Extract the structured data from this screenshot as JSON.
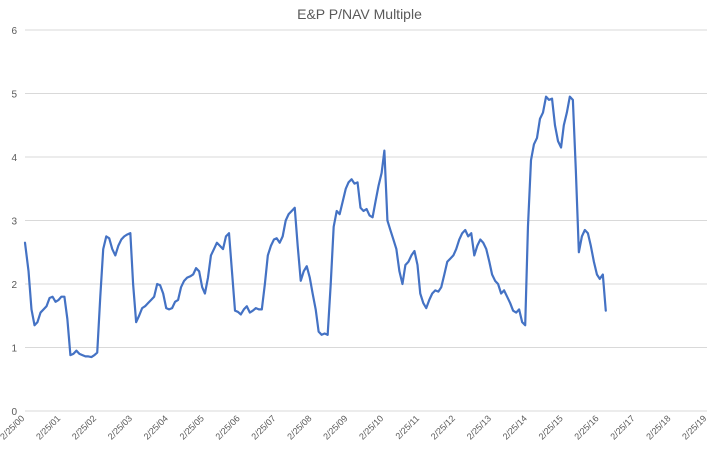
{
  "chart_data": {
    "type": "line",
    "title": "E&P P/NAV Multiple",
    "xlabel": "",
    "ylabel": "",
    "ylim": [
      0,
      6
    ],
    "yticks": [
      "0",
      "1",
      "2",
      "3",
      "4",
      "5",
      "6"
    ],
    "grid": true,
    "legend": "none",
    "line_color": "#4472C4",
    "grid_color": "#D9D9D9",
    "axis_label_color": "#595959",
    "xticks": [
      "2/25/00",
      "2/25/01",
      "2/25/02",
      "2/25/03",
      "2/25/04",
      "2/25/05",
      "2/25/06",
      "2/25/07",
      "2/25/08",
      "2/25/09",
      "2/25/10",
      "2/25/11",
      "2/25/12",
      "2/25/13",
      "2/25/14",
      "2/25/15",
      "2/25/16",
      "2/25/17",
      "2/25/18",
      "2/25/19"
    ],
    "series": [
      {
        "points": [
          [
            "2/25/00",
            2.65
          ],
          [
            "4/1/00",
            2.2
          ],
          [
            "5/1/00",
            1.6
          ],
          [
            "6/1/00",
            1.35
          ],
          [
            "7/1/00",
            1.4
          ],
          [
            "8/1/00",
            1.55
          ],
          [
            "9/1/00",
            1.6
          ],
          [
            "10/1/00",
            1.65
          ],
          [
            "11/1/00",
            1.78
          ],
          [
            "12/1/00",
            1.8
          ],
          [
            "1/1/01",
            1.72
          ],
          [
            "2/1/01",
            1.75
          ],
          [
            "3/1/01",
            1.8
          ],
          [
            "4/1/01",
            1.8
          ],
          [
            "5/1/01",
            1.45
          ],
          [
            "6/1/01",
            0.88
          ],
          [
            "7/1/01",
            0.9
          ],
          [
            "8/1/01",
            0.95
          ],
          [
            "9/1/01",
            0.9
          ],
          [
            "10/1/01",
            0.88
          ],
          [
            "11/1/01",
            0.86
          ],
          [
            "12/1/01",
            0.86
          ],
          [
            "1/1/02",
            0.85
          ],
          [
            "2/1/02",
            0.88
          ],
          [
            "3/1/02",
            0.92
          ],
          [
            "4/1/02",
            1.8
          ],
          [
            "5/1/02",
            2.55
          ],
          [
            "6/1/02",
            2.75
          ],
          [
            "7/1/02",
            2.72
          ],
          [
            "8/1/02",
            2.55
          ],
          [
            "9/1/02",
            2.45
          ],
          [
            "10/1/02",
            2.6
          ],
          [
            "11/1/02",
            2.7
          ],
          [
            "12/1/02",
            2.75
          ],
          [
            "1/1/03",
            2.78
          ],
          [
            "2/1/03",
            2.8
          ],
          [
            "3/1/03",
            2.0
          ],
          [
            "4/1/03",
            1.4
          ],
          [
            "5/1/03",
            1.5
          ],
          [
            "6/1/03",
            1.62
          ],
          [
            "7/1/03",
            1.65
          ],
          [
            "8/1/03",
            1.7
          ],
          [
            "9/1/03",
            1.75
          ],
          [
            "10/1/03",
            1.8
          ],
          [
            "11/1/03",
            2.0
          ],
          [
            "12/1/03",
            1.98
          ],
          [
            "1/1/04",
            1.85
          ],
          [
            "2/1/04",
            1.62
          ],
          [
            "3/1/04",
            1.6
          ],
          [
            "4/1/04",
            1.62
          ],
          [
            "5/1/04",
            1.72
          ],
          [
            "6/1/04",
            1.75
          ],
          [
            "7/1/04",
            1.95
          ],
          [
            "8/1/04",
            2.05
          ],
          [
            "9/1/04",
            2.1
          ],
          [
            "10/1/04",
            2.12
          ],
          [
            "11/1/04",
            2.15
          ],
          [
            "12/1/04",
            2.25
          ],
          [
            "1/1/05",
            2.2
          ],
          [
            "2/1/05",
            1.95
          ],
          [
            "3/1/05",
            1.85
          ],
          [
            "4/1/05",
            2.1
          ],
          [
            "5/1/05",
            2.45
          ],
          [
            "6/1/05",
            2.55
          ],
          [
            "7/1/05",
            2.65
          ],
          [
            "8/1/05",
            2.6
          ],
          [
            "9/1/05",
            2.55
          ],
          [
            "10/1/05",
            2.75
          ],
          [
            "11/1/05",
            2.8
          ],
          [
            "12/1/05",
            2.2
          ],
          [
            "1/1/06",
            1.58
          ],
          [
            "2/1/06",
            1.56
          ],
          [
            "3/1/06",
            1.52
          ],
          [
            "4/1/06",
            1.6
          ],
          [
            "5/1/06",
            1.65
          ],
          [
            "6/1/06",
            1.55
          ],
          [
            "7/1/06",
            1.58
          ],
          [
            "8/1/06",
            1.62
          ],
          [
            "9/1/06",
            1.6
          ],
          [
            "10/1/06",
            1.6
          ],
          [
            "11/1/06",
            2.0
          ],
          [
            "12/1/06",
            2.45
          ],
          [
            "1/1/07",
            2.6
          ],
          [
            "2/1/07",
            2.7
          ],
          [
            "3/1/07",
            2.72
          ],
          [
            "4/1/07",
            2.65
          ],
          [
            "5/1/07",
            2.75
          ],
          [
            "6/1/07",
            3.0
          ],
          [
            "7/1/07",
            3.1
          ],
          [
            "8/1/07",
            3.15
          ],
          [
            "9/1/07",
            3.2
          ],
          [
            "10/1/07",
            2.6
          ],
          [
            "11/1/07",
            2.05
          ],
          [
            "12/1/07",
            2.2
          ],
          [
            "1/1/08",
            2.28
          ],
          [
            "2/1/08",
            2.1
          ],
          [
            "3/1/08",
            1.85
          ],
          [
            "4/1/08",
            1.6
          ],
          [
            "5/1/08",
            1.25
          ],
          [
            "6/1/08",
            1.2
          ],
          [
            "7/1/08",
            1.22
          ],
          [
            "8/1/08",
            1.2
          ],
          [
            "9/1/08",
            2.0
          ],
          [
            "10/1/08",
            2.9
          ],
          [
            "11/1/08",
            3.15
          ],
          [
            "12/1/08",
            3.1
          ],
          [
            "1/1/09",
            3.3
          ],
          [
            "2/1/09",
            3.5
          ],
          [
            "3/1/09",
            3.6
          ],
          [
            "4/1/09",
            3.65
          ],
          [
            "5/1/09",
            3.58
          ],
          [
            "6/1/09",
            3.6
          ],
          [
            "7/1/09",
            3.2
          ],
          [
            "8/1/09",
            3.15
          ],
          [
            "9/1/09",
            3.18
          ],
          [
            "10/1/09",
            3.08
          ],
          [
            "11/1/09",
            3.05
          ],
          [
            "12/1/09",
            3.3
          ],
          [
            "1/1/10",
            3.55
          ],
          [
            "2/1/10",
            3.75
          ],
          [
            "3/1/10",
            4.1
          ],
          [
            "4/1/10",
            3.0
          ],
          [
            "5/1/10",
            2.85
          ],
          [
            "6/1/10",
            2.7
          ],
          [
            "7/1/10",
            2.55
          ],
          [
            "8/1/10",
            2.2
          ],
          [
            "9/1/10",
            2.0
          ],
          [
            "10/1/10",
            2.3
          ],
          [
            "11/1/10",
            2.35
          ],
          [
            "12/1/10",
            2.45
          ],
          [
            "1/1/11",
            2.52
          ],
          [
            "2/1/11",
            2.3
          ],
          [
            "3/1/11",
            1.85
          ],
          [
            "4/1/11",
            1.7
          ],
          [
            "5/1/11",
            1.62
          ],
          [
            "6/1/11",
            1.75
          ],
          [
            "7/1/11",
            1.85
          ],
          [
            "8/1/11",
            1.9
          ],
          [
            "9/1/11",
            1.88
          ],
          [
            "10/1/11",
            1.95
          ],
          [
            "11/1/11",
            2.15
          ],
          [
            "12/1/11",
            2.35
          ],
          [
            "1/1/12",
            2.4
          ],
          [
            "2/1/12",
            2.45
          ],
          [
            "3/1/12",
            2.55
          ],
          [
            "4/1/12",
            2.7
          ],
          [
            "5/1/12",
            2.8
          ],
          [
            "6/1/12",
            2.85
          ],
          [
            "7/1/12",
            2.75
          ],
          [
            "8/1/12",
            2.8
          ],
          [
            "9/1/12",
            2.45
          ],
          [
            "10/1/12",
            2.6
          ],
          [
            "11/1/12",
            2.7
          ],
          [
            "12/1/12",
            2.65
          ],
          [
            "1/1/13",
            2.55
          ],
          [
            "2/1/13",
            2.35
          ],
          [
            "3/1/13",
            2.15
          ],
          [
            "4/1/13",
            2.05
          ],
          [
            "5/1/13",
            2.0
          ],
          [
            "6/1/13",
            1.85
          ],
          [
            "7/1/13",
            1.9
          ],
          [
            "8/1/13",
            1.8
          ],
          [
            "9/1/13",
            1.7
          ],
          [
            "10/1/13",
            1.58
          ],
          [
            "11/1/13",
            1.55
          ],
          [
            "12/1/13",
            1.6
          ],
          [
            "1/1/14",
            1.4
          ],
          [
            "2/1/14",
            1.35
          ],
          [
            "3/1/14",
            2.9
          ],
          [
            "4/1/14",
            3.95
          ],
          [
            "5/1/14",
            4.2
          ],
          [
            "6/1/14",
            4.3
          ],
          [
            "7/1/14",
            4.6
          ],
          [
            "8/1/14",
            4.7
          ],
          [
            "9/1/14",
            4.95
          ],
          [
            "10/1/14",
            4.9
          ],
          [
            "11/1/14",
            4.92
          ],
          [
            "12/1/14",
            4.5
          ],
          [
            "1/1/15",
            4.25
          ],
          [
            "2/1/15",
            4.15
          ],
          [
            "3/1/15",
            4.5
          ],
          [
            "4/1/15",
            4.7
          ],
          [
            "5/1/15",
            4.95
          ],
          [
            "6/1/15",
            4.9
          ],
          [
            "7/1/15",
            3.8
          ],
          [
            "8/1/15",
            2.5
          ],
          [
            "9/1/15",
            2.75
          ],
          [
            "10/1/15",
            2.85
          ],
          [
            "11/1/15",
            2.8
          ],
          [
            "12/1/15",
            2.6
          ],
          [
            "1/1/16",
            2.35
          ],
          [
            "2/1/16",
            2.15
          ],
          [
            "3/1/16",
            2.08
          ],
          [
            "4/1/16",
            2.15
          ],
          [
            "5/1/16",
            1.58
          ]
        ]
      }
    ]
  }
}
